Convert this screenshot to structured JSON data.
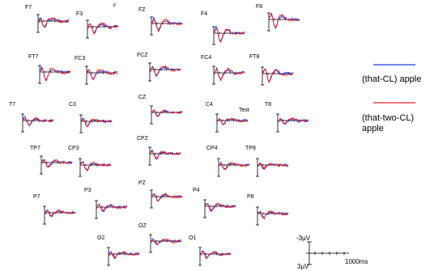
{
  "chart_data": {
    "type": "line",
    "title": "",
    "legend": {
      "placement": "right",
      "entries": [
        {
          "label": "(that-CL) apple",
          "color": "#1f3fe0"
        },
        {
          "label": "(that-two-CL) apple",
          "color": "#e8202a"
        }
      ]
    },
    "series": [
      {
        "name": "(that-CL) apple",
        "color": "#1f3fe0"
      },
      {
        "name": "(that-two-CL) apple",
        "color": "#e8202a"
      }
    ],
    "x_unit": "ms",
    "x_range": [
      0,
      1000
    ],
    "y_unit": "µV",
    "y_range": [
      -3,
      3
    ],
    "negative_up": true,
    "scale_bar": {
      "y_top_label": "-3µV",
      "y_bottom_label": "3µV",
      "x_label": "1000ms"
    },
    "annotations": [
      {
        "text": "F",
        "electrode": "F3",
        "color": "#e07020"
      },
      {
        "text": "Text",
        "electrode": "C4",
        "color": "#000000"
      }
    ],
    "electrodes": [
      "F7",
      "F3",
      "FZ",
      "F4",
      "F8",
      "FT7",
      "FC3",
      "FCZ",
      "FC4",
      "FT8",
      "T7",
      "C3",
      "CZ",
      "C4",
      "T8",
      "TP7",
      "CP3",
      "CPZ",
      "CP4",
      "TP8",
      "P7",
      "P3",
      "PZ",
      "P4",
      "P8",
      "O2",
      "OZ",
      "O1"
    ]
  }
}
